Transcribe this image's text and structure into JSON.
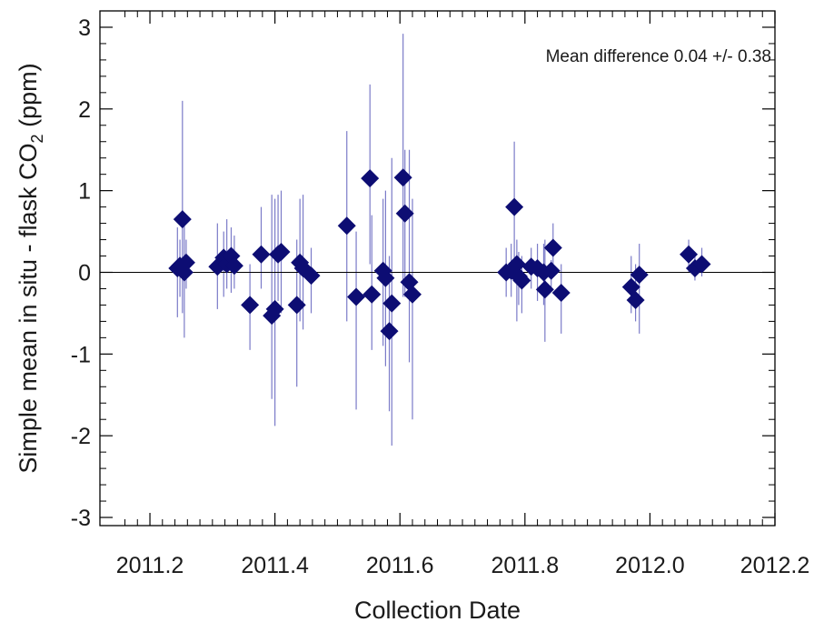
{
  "chart_data": {
    "type": "scatter",
    "xlabel": "Collection Date",
    "ylabel": "Simple mean in situ - flask CO",
    "ylabel_subscript": "2",
    "ylabel_suffix": " (ppm)",
    "annotation": "Mean difference 0.04 +/- 0.38",
    "xlim": [
      2011.12,
      2012.2
    ],
    "ylim": [
      -3.1,
      3.2
    ],
    "xticks": [
      2011.2,
      2011.4,
      2011.6,
      2011.8,
      2012.0,
      2012.2
    ],
    "xtick_labels": [
      "2011.2",
      "2011.4",
      "2011.6",
      "2011.8",
      "2012.0",
      "2012.2"
    ],
    "yticks": [
      -3,
      -2,
      -1,
      0,
      1,
      2,
      3
    ],
    "ytick_labels": [
      "-3",
      "-2",
      "-1",
      "0",
      "1",
      "2",
      "3"
    ],
    "reference_line_y": 0,
    "grid": false,
    "colors": {
      "marker": "#0d0d73",
      "errorbar": "#7b7bc8",
      "axis": "#000000"
    },
    "points": [
      {
        "x": 2011.244,
        "y": 0.05,
        "lo": -0.55,
        "hi": 0.55
      },
      {
        "x": 2011.248,
        "y": 0.08,
        "lo": -0.3,
        "hi": 0.4
      },
      {
        "x": 2011.252,
        "y": 0.65,
        "lo": -0.5,
        "hi": 2.1
      },
      {
        "x": 2011.255,
        "y": 0.0,
        "lo": -0.8,
        "hi": 0.6
      },
      {
        "x": 2011.258,
        "y": 0.12,
        "lo": -0.2,
        "hi": 0.4
      },
      {
        "x": 2011.308,
        "y": 0.07,
        "lo": -0.45,
        "hi": 0.6
      },
      {
        "x": 2011.318,
        "y": 0.18,
        "lo": -0.3,
        "hi": 0.5
      },
      {
        "x": 2011.323,
        "y": 0.1,
        "lo": -0.2,
        "hi": 0.65
      },
      {
        "x": 2011.33,
        "y": 0.2,
        "lo": -0.25,
        "hi": 0.55
      },
      {
        "x": 2011.335,
        "y": 0.08,
        "lo": -0.2,
        "hi": 0.45
      },
      {
        "x": 2011.36,
        "y": -0.4,
        "lo": -0.95,
        "hi": 0.1
      },
      {
        "x": 2011.378,
        "y": 0.22,
        "lo": -0.2,
        "hi": 0.8
      },
      {
        "x": 2011.395,
        "y": -0.53,
        "lo": -1.55,
        "hi": 0.95
      },
      {
        "x": 2011.4,
        "y": -0.45,
        "lo": -1.88,
        "hi": 0.9
      },
      {
        "x": 2011.405,
        "y": 0.22,
        "lo": -0.35,
        "hi": 0.95
      },
      {
        "x": 2011.41,
        "y": 0.25,
        "lo": -0.5,
        "hi": 1.0
      },
      {
        "x": 2011.435,
        "y": -0.4,
        "lo": -1.4,
        "hi": 0.4
      },
      {
        "x": 2011.44,
        "y": 0.12,
        "lo": -0.6,
        "hi": 0.9
      },
      {
        "x": 2011.445,
        "y": 0.05,
        "lo": -0.7,
        "hi": 0.95
      },
      {
        "x": 2011.458,
        "y": -0.04,
        "lo": -0.5,
        "hi": 0.3
      },
      {
        "x": 2011.515,
        "y": 0.57,
        "lo": -0.6,
        "hi": 1.73
      },
      {
        "x": 2011.53,
        "y": -0.3,
        "lo": -1.68,
        "hi": 0.5
      },
      {
        "x": 2011.552,
        "y": 1.15,
        "lo": 0.1,
        "hi": 2.3
      },
      {
        "x": 2011.555,
        "y": -0.27,
        "lo": -0.95,
        "hi": 0.7
      },
      {
        "x": 2011.573,
        "y": 0.02,
        "lo": -0.9,
        "hi": 0.9
      },
      {
        "x": 2011.577,
        "y": -0.07,
        "lo": -1.15,
        "hi": 1.0
      },
      {
        "x": 2011.583,
        "y": -0.72,
        "lo": -1.7,
        "hi": 0.2
      },
      {
        "x": 2011.587,
        "y": -0.38,
        "lo": -2.12,
        "hi": 1.4
      },
      {
        "x": 2011.605,
        "y": 1.16,
        "lo": -0.3,
        "hi": 2.92
      },
      {
        "x": 2011.608,
        "y": 0.72,
        "lo": -0.3,
        "hi": 1.5
      },
      {
        "x": 2011.615,
        "y": -0.12,
        "lo": -1.1,
        "hi": 1.5
      },
      {
        "x": 2011.62,
        "y": -0.27,
        "lo": -1.8,
        "hi": 0.9
      },
      {
        "x": 2011.77,
        "y": 0.0,
        "lo": -0.3,
        "hi": 0.3
      },
      {
        "x": 2011.778,
        "y": 0.02,
        "lo": -0.3,
        "hi": 0.35
      },
      {
        "x": 2011.783,
        "y": 0.8,
        "lo": 0.0,
        "hi": 1.6
      },
      {
        "x": 2011.787,
        "y": 0.1,
        "lo": -0.6,
        "hi": 0.4
      },
      {
        "x": 2011.79,
        "y": -0.05,
        "lo": -0.4,
        "hi": 0.25
      },
      {
        "x": 2011.795,
        "y": -0.1,
        "lo": -0.5,
        "hi": 0.2
      },
      {
        "x": 2011.81,
        "y": 0.07,
        "lo": -0.2,
        "hi": 0.3
      },
      {
        "x": 2011.82,
        "y": 0.05,
        "lo": -0.35,
        "hi": 0.35
      },
      {
        "x": 2011.83,
        "y": 0.0,
        "lo": -0.4,
        "hi": 0.35
      },
      {
        "x": 2011.832,
        "y": -0.21,
        "lo": -0.85,
        "hi": 0.4
      },
      {
        "x": 2011.842,
        "y": 0.02,
        "lo": -0.2,
        "hi": 0.15
      },
      {
        "x": 2011.845,
        "y": 0.3,
        "lo": 0.0,
        "hi": 0.6
      },
      {
        "x": 2011.858,
        "y": -0.25,
        "lo": -0.75,
        "hi": 0.1
      },
      {
        "x": 2011.97,
        "y": -0.18,
        "lo": -0.5,
        "hi": 0.2
      },
      {
        "x": 2011.977,
        "y": -0.34,
        "lo": -0.6,
        "hi": 0.1
      },
      {
        "x": 2011.983,
        "y": -0.03,
        "lo": -0.75,
        "hi": 0.35
      },
      {
        "x": 2012.062,
        "y": 0.22,
        "lo": 0.0,
        "hi": 0.4
      },
      {
        "x": 2012.072,
        "y": 0.05,
        "lo": -0.1,
        "hi": 0.25
      },
      {
        "x": 2012.083,
        "y": 0.1,
        "lo": -0.05,
        "hi": 0.3
      }
    ]
  }
}
